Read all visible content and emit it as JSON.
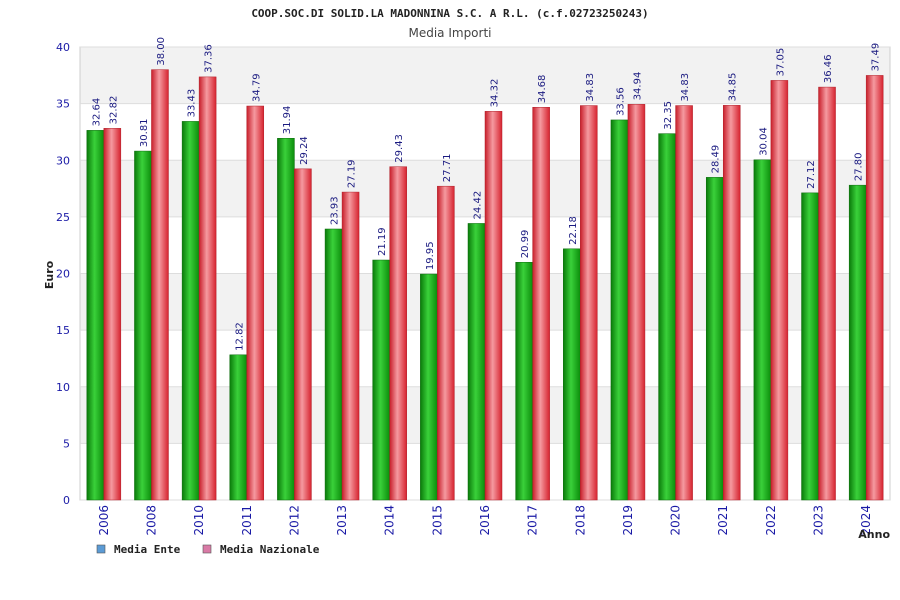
{
  "chart_data": {
    "type": "bar",
    "title": "COOP.SOC.DI SOLID.LA MADONNINA S.C. A R.L. (c.f.02723250243)",
    "subtitle": "Media Importi",
    "xlabel": "Anno",
    "ylabel": "Euro",
    "ylim": [
      0,
      40
    ],
    "yticks": [
      0,
      5,
      10,
      15,
      20,
      25,
      30,
      35,
      40
    ],
    "grid": true,
    "legend_position": "bottom-left",
    "categories": [
      "2006",
      "2008",
      "2010",
      "2011",
      "2012",
      "2013",
      "2014",
      "2015",
      "2016",
      "2017",
      "2018",
      "2019",
      "2020",
      "2021",
      "2022",
      "2023",
      "2024"
    ],
    "series": [
      {
        "name": "Media Ente",
        "color": "#12b312",
        "legend_color": "#5b9bd5",
        "values": [
          32.64,
          30.81,
          33.43,
          12.82,
          31.94,
          23.93,
          21.19,
          19.95,
          24.42,
          20.99,
          22.18,
          33.56,
          32.35,
          28.49,
          30.04,
          27.12,
          27.8
        ],
        "labels": [
          "32.64",
          "30.81",
          "33.43",
          "12.82",
          "31.94",
          "23.93",
          "21.19",
          "19.95",
          "24.42",
          "20.99",
          "22.18",
          "33.56",
          "32.35",
          "28.49",
          "30.04",
          "27.12",
          "27.80"
        ]
      },
      {
        "name": "Media Nazionale",
        "color": "#e8323c",
        "legend_color": "#d97aa6",
        "values": [
          32.82,
          38.0,
          37.36,
          34.79,
          29.24,
          27.19,
          29.43,
          27.71,
          34.32,
          34.68,
          34.83,
          34.94,
          34.83,
          34.85,
          37.05,
          36.46,
          37.49
        ],
        "labels": [
          "32.82",
          "38.00",
          "37.36",
          "34.79",
          "29.24",
          "27.19",
          "29.43",
          "27.71",
          "34.32",
          "34.68",
          "34.83",
          "34.94",
          "34.83",
          "34.85",
          "37.05",
          "36.46",
          "37.49"
        ]
      }
    ]
  }
}
